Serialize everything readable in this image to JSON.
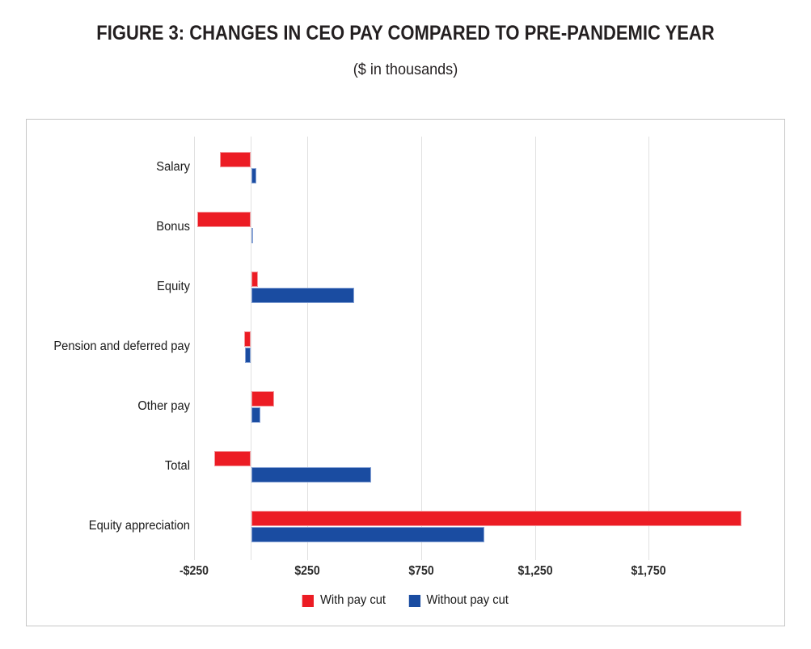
{
  "figure": {
    "title": "FIGURE 3: CHANGES IN CEO PAY COMPARED TO PRE-PANDEMIC YEAR",
    "subtitle": "($ in thousands)"
  },
  "chart_data": {
    "type": "bar",
    "orientation": "horizontal",
    "title": "FIGURE 3: CHANGES IN CEO PAY COMPARED TO PRE-PANDEMIC YEAR",
    "subtitle": "($ in thousands)",
    "units": "USD thousands",
    "xlabel": "",
    "ylabel": "",
    "categories": [
      "Salary",
      "Bonus",
      "Equity",
      "Pension and deferred pay",
      "Other pay",
      "Total",
      "Equity appreciation"
    ],
    "series": [
      {
        "name": "With pay cut",
        "color": "#EC1C24",
        "border_color": "#F4989C",
        "values": [
          -135,
          -235,
          30,
          -30,
          100,
          -160,
          2155
        ]
      },
      {
        "name": "Without pay cut",
        "color": "#1A4CA1",
        "border_color": "#87A3D6",
        "values": [
          20,
          3,
          450,
          -25,
          40,
          525,
          1025
        ]
      }
    ],
    "x_axis": {
      "ticks": [
        {
          "value": -250,
          "label": "-$250"
        },
        {
          "value": 250,
          "label": "$250"
        },
        {
          "value": 750,
          "label": "$750"
        },
        {
          "value": 1250,
          "label": "$1,250"
        },
        {
          "value": 1750,
          "label": "$1,750"
        }
      ],
      "zero_line": true,
      "xlim": [
        -500,
        2350
      ]
    },
    "grid": "vertical",
    "legend_position": "bottom",
    "colors": {
      "gridline": "#E0E0E0",
      "box_border": "#C6C6C6",
      "text": "#231F20"
    }
  }
}
